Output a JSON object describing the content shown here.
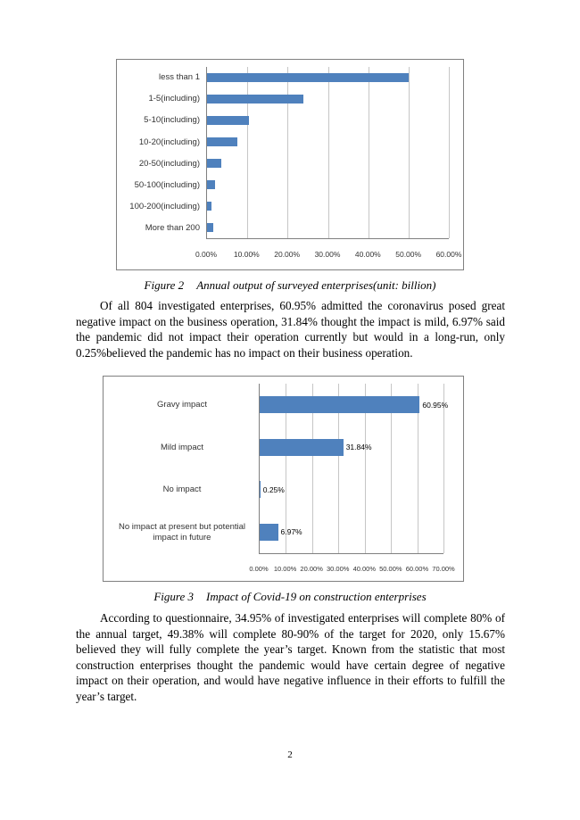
{
  "page": {
    "number": "2"
  },
  "figures": [
    {
      "label": "Figure 2",
      "text": "Annual output of surveyed enterprises(unit: billion)"
    },
    {
      "label": "Figure 3",
      "text": "Impact of Covid-19 on construction enterprises"
    }
  ],
  "paragraphs": [
    "Of all 804 investigated enterprises, 60.95% admitted the coronavirus posed great negative impact on the business operation, 31.84% thought the impact is mild, 6.97% said the pandemic did not impact their operation currently but would in a long-run, only 0.25%believed the pandemic has no impact on their business operation.",
    "According to questionnaire, 34.95% of investigated enterprises will complete 80% of the annual target, 49.38% will complete 80-90% of the target for 2020, only 15.67% believed they will fully complete the year’s target. Known from the statistic that most construction enterprises thought the pandemic would have certain degree of negative impact on their operation, and would have negative influence in their efforts to fulfill the year’s target."
  ],
  "chart_data": [
    {
      "type": "bar",
      "orientation": "horizontal",
      "title": "Annual output of surveyed enterprises (unit: billion)",
      "categories": [
        "less than 1",
        "1-5(including)",
        "5-10(including)",
        "10-20(including)",
        "20-50(including)",
        "50-100(including)",
        "100-200(including)",
        "More than 200"
      ],
      "values": [
        50,
        24,
        10.5,
        7.5,
        3.5,
        2,
        1,
        1.5
      ],
      "xlim": [
        0,
        60
      ],
      "xticks": [
        "0.00%",
        "10.00%",
        "20.00%",
        "30.00%",
        "40.00%",
        "50.00%",
        "60.00%"
      ],
      "bar_color": "#4f81bd",
      "grid": true,
      "legend": "none"
    },
    {
      "type": "bar",
      "orientation": "horizontal",
      "title": "Impact of Covid-19 on construction enterprises",
      "categories": [
        "Gravy impact",
        "Mild impact",
        "No impact",
        "No impact at present but potential impact in future"
      ],
      "values": [
        60.95,
        31.84,
        0.25,
        6.97
      ],
      "labels": [
        "60.95%",
        "31.84%",
        "0.25%",
        "6.97%"
      ],
      "xlim": [
        0,
        70
      ],
      "xticks": [
        "0.00%",
        "10.00%",
        "20.00%",
        "30.00%",
        "40.00%",
        "50.00%",
        "60.00%",
        "70.00%"
      ],
      "bar_color": "#4f81bd",
      "grid": true,
      "legend": "none"
    }
  ]
}
